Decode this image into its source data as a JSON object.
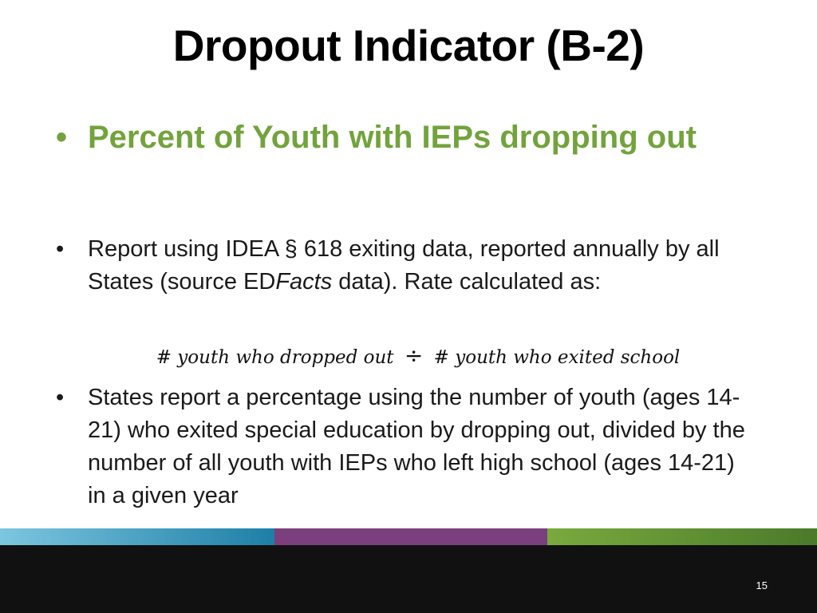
{
  "slide": {
    "title": "Dropout Indicator (B-2)",
    "bullet_glyph": "•",
    "main_bullet": "Percent of Youth with IEPs dropping out",
    "sub_bullets": [
      {
        "text_before_em": "Report using IDEA  § 618 exiting data, reported annually by all States (source ED",
        "em": "Facts",
        "text_after_em": " data). Rate calculated as:"
      },
      {
        "text": "States report a percentage using the number of youth (ages 14-21) who exited special education by dropping out, divided by the number of all youth with IEPs who left high school (ages 14-21) in a given year"
      }
    ],
    "formula": {
      "numerator": "# youth who dropped out",
      "operator": "÷",
      "denominator": "# youth who exited school"
    },
    "page_number": "15",
    "colors": {
      "title": "#000000",
      "main_bullet": "#72a33c",
      "bar_blue": "#1d7fa6",
      "bar_purple": "#7b3f7d",
      "bar_green": "#79aa3e",
      "footer": "#111111"
    }
  }
}
